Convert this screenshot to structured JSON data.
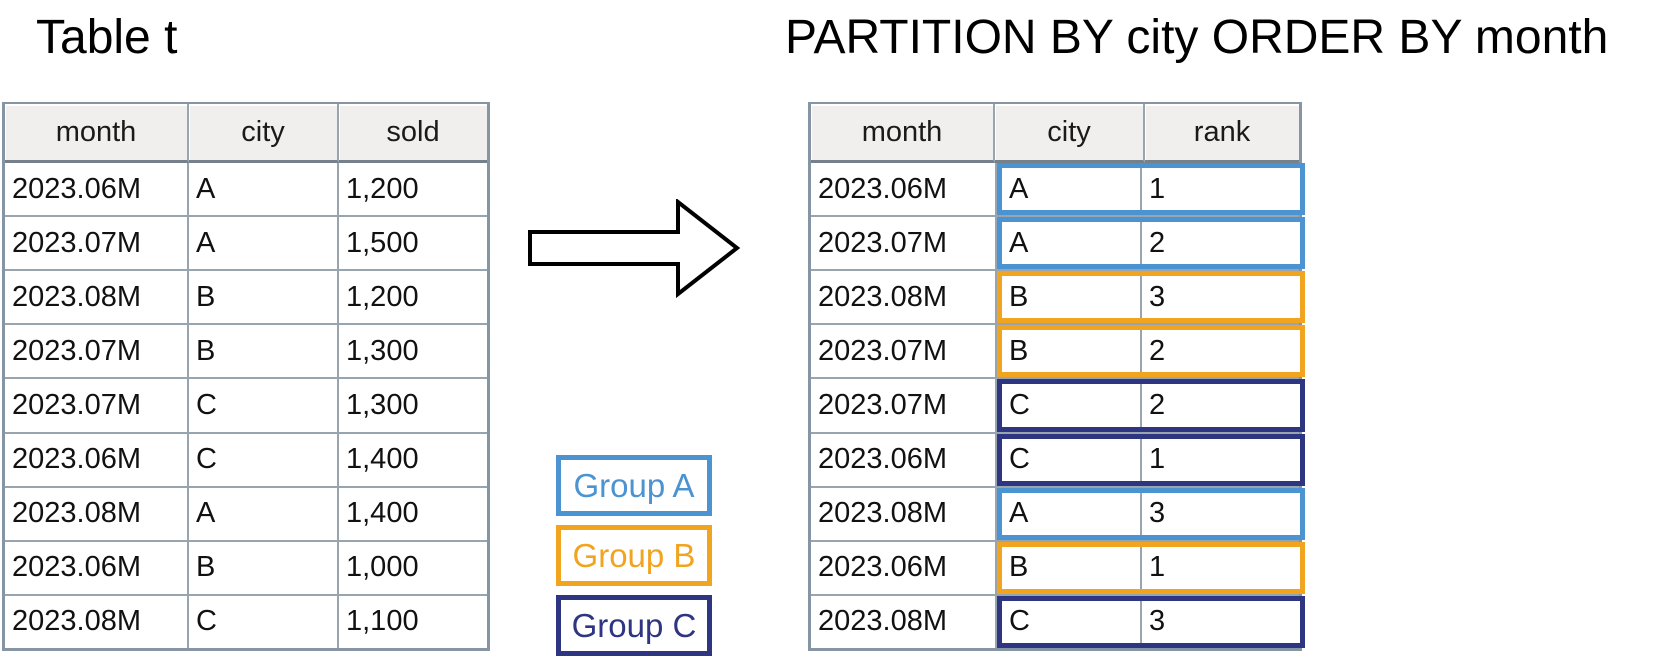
{
  "left": {
    "title": "Table t",
    "table": {
      "columns": [
        "month",
        "city",
        "sold"
      ],
      "rows": [
        [
          "2023.06M",
          "A",
          "1,200"
        ],
        [
          "2023.07M",
          "A",
          "1,500"
        ],
        [
          "2023.08M",
          "B",
          "1,200"
        ],
        [
          "2023.07M",
          "B",
          "1,300"
        ],
        [
          "2023.07M",
          "C",
          "1,300"
        ],
        [
          "2023.06M",
          "C",
          "1,400"
        ],
        [
          "2023.08M",
          "A",
          "1,400"
        ],
        [
          "2023.06M",
          "B",
          "1,000"
        ],
        [
          "2023.08M",
          "C",
          "1,100"
        ]
      ]
    }
  },
  "right": {
    "title": "PARTITION BY city ORDER BY month",
    "table": {
      "columns": [
        "month",
        "city",
        "rank"
      ],
      "rows": [
        {
          "month": "2023.06M",
          "city": "A",
          "rank": "1",
          "group": "A"
        },
        {
          "month": "2023.07M",
          "city": "A",
          "rank": "2",
          "group": "A"
        },
        {
          "month": "2023.08M",
          "city": "B",
          "rank": "3",
          "group": "B"
        },
        {
          "month": "2023.07M",
          "city": "B",
          "rank": "2",
          "group": "B"
        },
        {
          "month": "2023.07M",
          "city": "C",
          "rank": "2",
          "group": "C"
        },
        {
          "month": "2023.06M",
          "city": "C",
          "rank": "1",
          "group": "C"
        },
        {
          "month": "2023.08M",
          "city": "A",
          "rank": "3",
          "group": "A"
        },
        {
          "month": "2023.06M",
          "city": "B",
          "rank": "1",
          "group": "B"
        },
        {
          "month": "2023.08M",
          "city": "C",
          "rank": "3",
          "group": "C"
        }
      ]
    },
    "group_colors": {
      "A": "#4b93d1",
      "B": "#f0a420",
      "C": "#2e3581"
    }
  },
  "legend": {
    "items": [
      {
        "label": "Group A",
        "color": "#4b93d1"
      },
      {
        "label": "Group B",
        "color": "#f0a420"
      },
      {
        "label": "Group C",
        "color": "#2e3581"
      }
    ]
  }
}
